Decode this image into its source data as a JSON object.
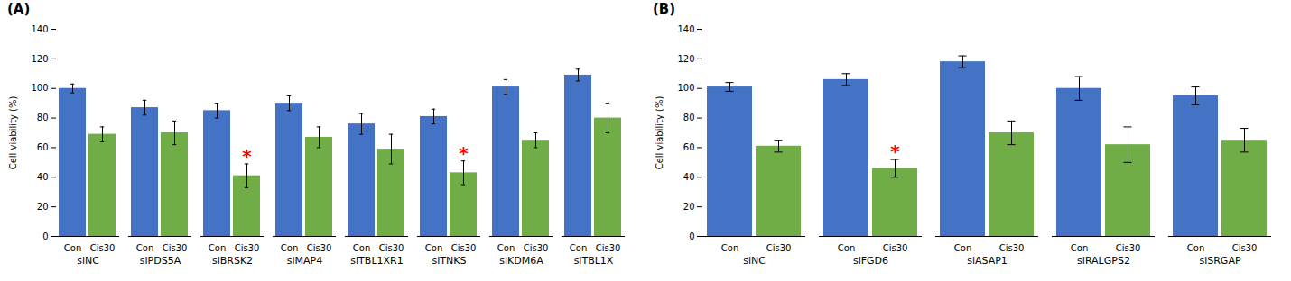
{
  "chart_data": [
    {
      "type": "bar",
      "title": "(A)",
      "categories": [
        "siNC",
        "siPDS5A",
        "siBRSK2",
        "siMAP4",
        "siTBL1XR1",
        "siTNKS",
        "siKDM6A",
        "siTBL1X"
      ],
      "series": [
        {
          "name": "Con",
          "color": "#4472C4",
          "values": [
            100,
            87,
            85,
            90,
            76,
            81,
            101,
            109
          ],
          "errors": [
            3,
            5,
            5,
            5,
            7,
            5,
            5,
            4
          ]
        },
        {
          "name": "Cis30",
          "color": "#70AD47",
          "values": [
            69,
            70,
            41,
            67,
            59,
            43,
            65,
            80
          ],
          "errors": [
            5,
            8,
            8,
            7,
            10,
            8,
            5,
            10
          ]
        }
      ],
      "ylabel": "Cell viability (%)",
      "ylim": [
        0,
        140
      ],
      "yticks": [
        0,
        20,
        40,
        60,
        80,
        100,
        120,
        140
      ],
      "grid": false,
      "annotations": [
        {
          "text": "*",
          "category": "siBRSK2",
          "series": "Cis30",
          "color": "red"
        },
        {
          "text": "*",
          "category": "siTNKS",
          "series": "Cis30",
          "color": "red"
        }
      ]
    },
    {
      "type": "bar",
      "title": "(B)",
      "categories": [
        "siNC",
        "siFGD6",
        "siASAP1",
        "siRALGPS2",
        "siSRGAP"
      ],
      "series": [
        {
          "name": "Con",
          "color": "#4472C4",
          "values": [
            101,
            106,
            118,
            100,
            95
          ],
          "errors": [
            3,
            4,
            4,
            8,
            6
          ]
        },
        {
          "name": "Cis30",
          "color": "#70AD47",
          "values": [
            61,
            46,
            70,
            62,
            65
          ],
          "errors": [
            4,
            6,
            8,
            12,
            8
          ]
        }
      ],
      "ylabel": "Cell viability (%)",
      "ylim": [
        0,
        140
      ],
      "yticks": [
        0,
        20,
        40,
        60,
        80,
        100,
        120,
        140
      ],
      "grid": false,
      "annotations": [
        {
          "text": "*",
          "category": "siFGD6",
          "series": "Cis30",
          "color": "red"
        }
      ]
    }
  ]
}
